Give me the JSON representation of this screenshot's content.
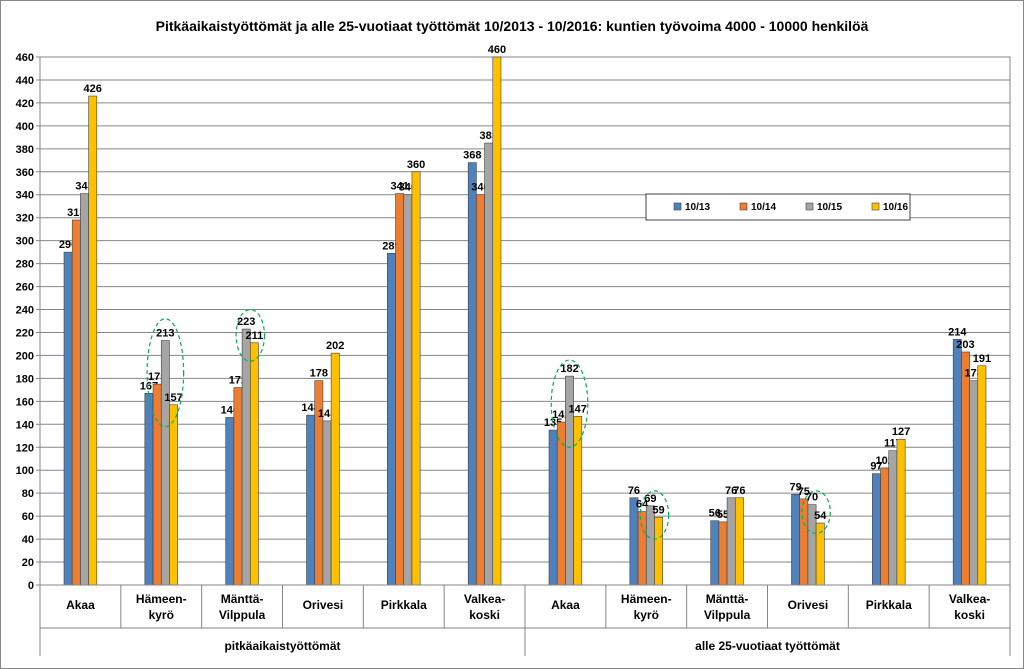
{
  "chart_data": {
    "type": "bar",
    "title": "Pitkäaikaistyöttömät ja alle 25-vuotiaat työttömät 10/2013 - 10/2016: kuntien työvoima 4000 - 10000 henkilöä",
    "ylim": [
      0,
      460
    ],
    "ytick_step": 20,
    "grid": true,
    "legend_position": "right",
    "groups": [
      {
        "name": "pitkäaikaistyöttömät",
        "categories": [
          {
            "line1": "Akaa",
            "line2": ""
          },
          {
            "line1": "Hämeen-",
            "line2": "kyrö"
          },
          {
            "line1": "Mänttä-",
            "line2": "Vilppula"
          },
          {
            "line1": "Orivesi",
            "line2": ""
          },
          {
            "line1": "Pirkkala",
            "line2": ""
          },
          {
            "line1": "Valkea-",
            "line2": "koski"
          }
        ]
      },
      {
        "name": "alle 25-vuotiaat työttömät",
        "categories": [
          {
            "line1": "Akaa",
            "line2": ""
          },
          {
            "line1": "Hämeen-",
            "line2": "kyrö"
          },
          {
            "line1": "Mänttä-",
            "line2": "Vilppula"
          },
          {
            "line1": "Orivesi",
            "line2": ""
          },
          {
            "line1": "Pirkkala",
            "line2": ""
          },
          {
            "line1": "Valkea-",
            "line2": "koski"
          }
        ]
      }
    ],
    "series": [
      {
        "name": "10/13",
        "color": "#4f81bd",
        "values": [
          290,
          167,
          146,
          148,
          289,
          368,
          135,
          76,
          56,
          79,
          97,
          214
        ]
      },
      {
        "name": "10/14",
        "color": "#ed7d31",
        "values": [
          318,
          175,
          172,
          178,
          341,
          340,
          142,
          64,
          55,
          75,
          102,
          203
        ]
      },
      {
        "name": "10/15",
        "color": "#a5a5a5",
        "values": [
          341,
          213,
          223,
          143,
          340,
          385,
          182,
          69,
          76,
          70,
          117,
          178
        ]
      },
      {
        "name": "10/16",
        "color": "#ffc000",
        "values": [
          426,
          157,
          211,
          202,
          360,
          460,
          147,
          59,
          76,
          54,
          127,
          191
        ]
      }
    ],
    "highlight_color": "#00b050",
    "highlights": [
      {
        "category": 1,
        "series": [
          1,
          3
        ],
        "ymin": 138,
        "ymax": 232
      },
      {
        "category": 2,
        "series": [
          2,
          3
        ],
        "ymin": 195,
        "ymax": 240
      },
      {
        "category": 6,
        "series": [
          1,
          3
        ],
        "ymin": 120,
        "ymax": 196
      },
      {
        "category": 7,
        "series": [
          2,
          3
        ],
        "ymin": 40,
        "ymax": 82
      },
      {
        "category": 9,
        "series": [
          2,
          3
        ],
        "ymin": 45,
        "ymax": 82
      }
    ]
  }
}
